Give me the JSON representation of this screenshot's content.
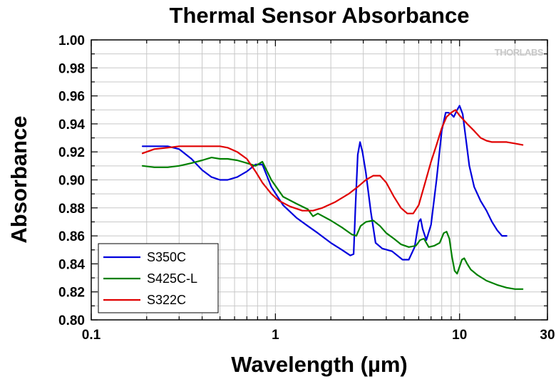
{
  "logo": "THORLABS",
  "chart_data": {
    "type": "line",
    "title": "Thermal Sensor Absorbance",
    "xlabel": "Wavelength (µm)",
    "ylabel": "Absorbance",
    "x_scale": "log",
    "xlim": [
      0.1,
      30
    ],
    "ylim": [
      0.8,
      1.0
    ],
    "x_ticks": [
      0.1,
      1,
      10,
      30
    ],
    "x_tick_labels": [
      "0.1",
      "1",
      "10",
      "30"
    ],
    "y_ticks": [
      0.8,
      0.82,
      0.84,
      0.86,
      0.88,
      0.9,
      0.92,
      0.94,
      0.96,
      0.98,
      1.0
    ],
    "y_tick_labels": [
      "0.80",
      "0.82",
      "0.84",
      "0.86",
      "0.88",
      "0.90",
      "0.92",
      "0.94",
      "0.96",
      "0.98",
      "1.00"
    ],
    "grid": true,
    "legend_position": "bottom-left",
    "series": [
      {
        "name": "S350C",
        "color": "#0000dd",
        "x": [
          0.19,
          0.22,
          0.26,
          0.3,
          0.35,
          0.4,
          0.45,
          0.5,
          0.55,
          0.62,
          0.7,
          0.78,
          0.85,
          0.95,
          1.1,
          1.3,
          1.5,
          1.7,
          2.0,
          2.3,
          2.55,
          2.66,
          2.72,
          2.8,
          2.88,
          2.97,
          3.1,
          3.3,
          3.5,
          3.8,
          4.3,
          4.9,
          5.3,
          5.7,
          6.0,
          6.15,
          6.3,
          6.6,
          7.0,
          7.5,
          8.0,
          8.4,
          8.7,
          9.0,
          9.3,
          9.7,
          10.0,
          10.4,
          10.8,
          11.3,
          12.0,
          13.0,
          14.0,
          15.0,
          16.0,
          17.0,
          18.0
        ],
        "y": [
          0.924,
          0.924,
          0.924,
          0.922,
          0.915,
          0.907,
          0.902,
          0.9,
          0.9,
          0.902,
          0.906,
          0.911,
          0.911,
          0.895,
          0.882,
          0.873,
          0.867,
          0.862,
          0.855,
          0.85,
          0.846,
          0.847,
          0.88,
          0.918,
          0.927,
          0.92,
          0.905,
          0.877,
          0.855,
          0.851,
          0.849,
          0.843,
          0.843,
          0.852,
          0.87,
          0.872,
          0.865,
          0.857,
          0.868,
          0.9,
          0.935,
          0.948,
          0.948,
          0.947,
          0.945,
          0.95,
          0.953,
          0.947,
          0.93,
          0.91,
          0.895,
          0.885,
          0.878,
          0.87,
          0.864,
          0.86,
          0.86
        ]
      },
      {
        "name": "S425C-L",
        "color": "#008000",
        "x": [
          0.19,
          0.22,
          0.26,
          0.3,
          0.35,
          0.4,
          0.45,
          0.5,
          0.55,
          0.62,
          0.7,
          0.78,
          0.85,
          0.95,
          1.1,
          1.3,
          1.5,
          1.6,
          1.7,
          2.0,
          2.3,
          2.6,
          2.75,
          2.9,
          3.1,
          3.4,
          3.7,
          4.0,
          4.4,
          4.8,
          5.3,
          5.8,
          6.1,
          6.4,
          6.8,
          7.3,
          7.8,
          8.2,
          8.5,
          8.8,
          9.1,
          9.4,
          9.7,
          10.0,
          10.3,
          10.6,
          11.0,
          11.5,
          12.5,
          14.0,
          16.0,
          18.0,
          20.0,
          22.0
        ],
        "y": [
          0.91,
          0.909,
          0.909,
          0.91,
          0.912,
          0.914,
          0.916,
          0.915,
          0.915,
          0.914,
          0.912,
          0.91,
          0.913,
          0.9,
          0.888,
          0.883,
          0.879,
          0.874,
          0.876,
          0.871,
          0.866,
          0.861,
          0.86,
          0.867,
          0.87,
          0.871,
          0.867,
          0.862,
          0.858,
          0.854,
          0.852,
          0.853,
          0.857,
          0.858,
          0.852,
          0.853,
          0.855,
          0.862,
          0.863,
          0.858,
          0.845,
          0.835,
          0.833,
          0.838,
          0.843,
          0.844,
          0.84,
          0.836,
          0.832,
          0.828,
          0.825,
          0.823,
          0.822,
          0.822
        ]
      },
      {
        "name": "S322C",
        "color": "#e00000",
        "x": [
          0.19,
          0.22,
          0.26,
          0.3,
          0.35,
          0.4,
          0.45,
          0.5,
          0.55,
          0.62,
          0.7,
          0.78,
          0.85,
          0.95,
          1.05,
          1.2,
          1.4,
          1.6,
          1.8,
          2.1,
          2.5,
          2.8,
          3.1,
          3.4,
          3.7,
          4.0,
          4.4,
          4.8,
          5.2,
          5.6,
          6.0,
          6.5,
          7.0,
          7.5,
          8.0,
          8.5,
          9.0,
          9.5,
          10.0,
          11.0,
          12.0,
          13.0,
          14.0,
          15.0,
          16.0,
          17.0,
          18.0,
          20.0,
          22.0
        ],
        "y": [
          0.919,
          0.922,
          0.923,
          0.924,
          0.924,
          0.924,
          0.924,
          0.924,
          0.923,
          0.92,
          0.915,
          0.906,
          0.898,
          0.89,
          0.885,
          0.881,
          0.878,
          0.878,
          0.88,
          0.884,
          0.89,
          0.895,
          0.9,
          0.903,
          0.903,
          0.898,
          0.888,
          0.88,
          0.876,
          0.876,
          0.882,
          0.898,
          0.913,
          0.925,
          0.937,
          0.945,
          0.948,
          0.95,
          0.946,
          0.94,
          0.935,
          0.93,
          0.928,
          0.927,
          0.927,
          0.927,
          0.927,
          0.926,
          0.925
        ]
      }
    ]
  }
}
